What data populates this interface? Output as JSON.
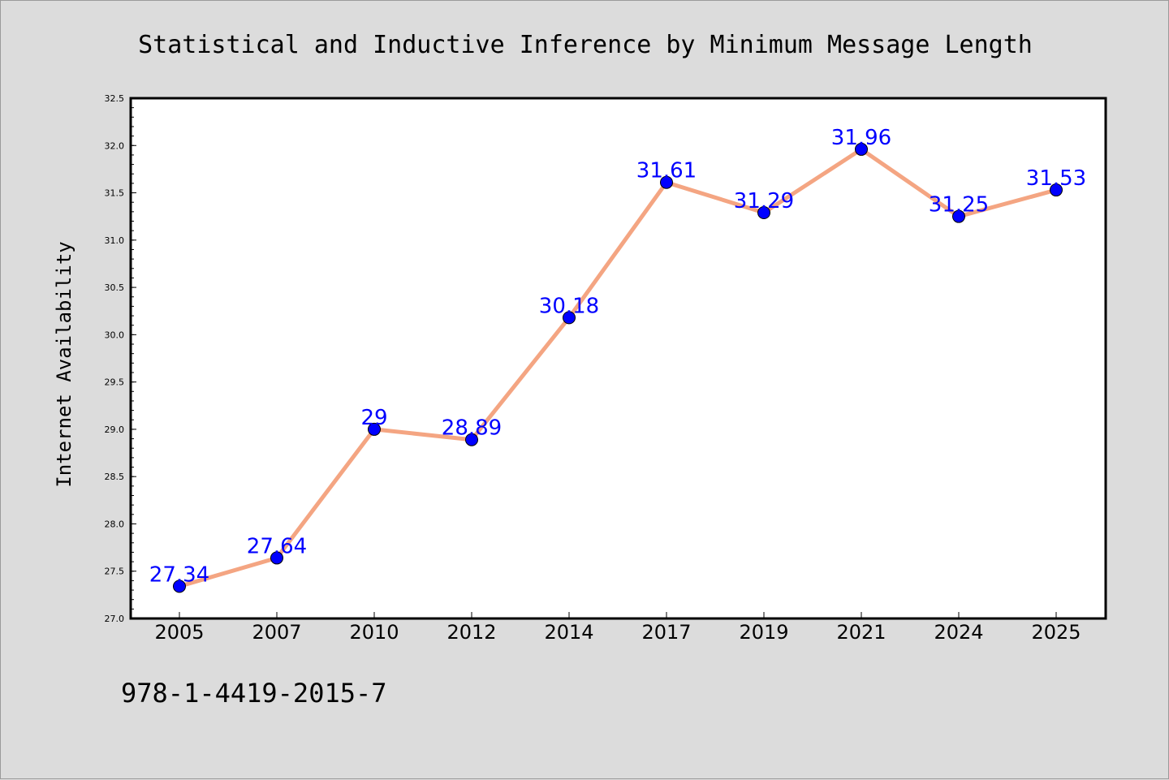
{
  "chart_data": {
    "type": "line",
    "title": "Statistical and Inductive Inference by Minimum Message Length",
    "xlabel": "",
    "ylabel": "Internet Availability",
    "categories": [
      "2005",
      "2007",
      "2010",
      "2012",
      "2014",
      "2017",
      "2019",
      "2021",
      "2024",
      "2025"
    ],
    "values": [
      27.34,
      27.64,
      29,
      28.89,
      30.18,
      31.61,
      31.29,
      31.96,
      31.25,
      31.53
    ],
    "data_labels": [
      "27.34",
      "27.64",
      "29",
      "28.89",
      "30.18",
      "31.61",
      "31.29",
      "31.96",
      "31.25",
      "31.53"
    ],
    "ylim": [
      27.0,
      32.5
    ],
    "yticks": [
      "27.0",
      "27.5",
      "28.0",
      "28.5",
      "29.0",
      "29.5",
      "30.0",
      "30.5",
      "31.0",
      "31.5",
      "32.0",
      "32.5"
    ],
    "grid": false,
    "line_color": "#f4a582",
    "marker_color": "#0000ff",
    "label_color": "#0000ff"
  },
  "footer": {
    "isbn": "978-1-4419-2015-7"
  }
}
